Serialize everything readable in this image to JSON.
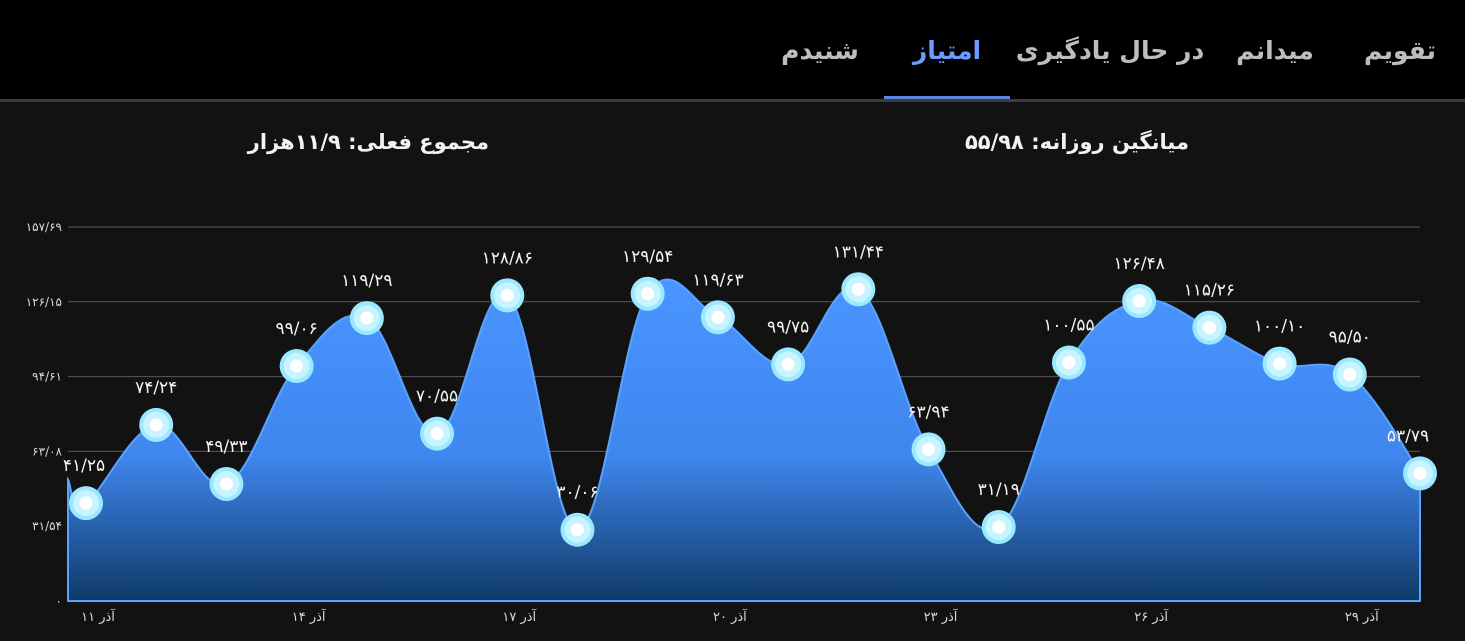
{
  "tabs": [
    {
      "label": "تقویم",
      "active": false
    },
    {
      "label": "میدانم",
      "active": false
    },
    {
      "label": "در حال یادگیری",
      "active": false
    },
    {
      "label": "امتیاز",
      "active": true
    },
    {
      "label": "شنیدم",
      "active": false
    }
  ],
  "stats": {
    "daily_average": "میانگین روزانه: ۵۵/۹۸",
    "current_total": "مجموع فعلی: ۱۱/۹هزار"
  },
  "colors": {
    "accent": "#6b9cff",
    "area_top": "#4a95ff",
    "area_bottom": "#0f3a66",
    "marker_ring": "#9be9ff"
  },
  "chart_data": {
    "type": "area",
    "x": [
      11,
      12,
      13,
      14,
      15,
      16,
      17,
      18,
      19,
      20,
      21,
      22,
      23,
      24,
      25,
      26,
      27,
      28,
      29,
      30
    ],
    "values": [
      41.25,
      74.24,
      49.33,
      99.06,
      119.29,
      70.55,
      128.86,
      30.06,
      129.54,
      119.63,
      99.75,
      131.44,
      63.94,
      31.19,
      100.55,
      126.48,
      115.26,
      100.1,
      95.5,
      53.79
    ],
    "data_labels": [
      "۴۱/۲۵",
      "۷۴/۲۴",
      "۴۹/۳۳",
      "۹۹/۰۶",
      "۱۱۹/۲۹",
      "۷۰/۵۵",
      "۱۲۸/۸۶",
      "۳۰/۰۶",
      "۱۲۹/۵۴",
      "۱۱۹/۶۳",
      "۹۹/۷۵",
      "۱۳۱/۴۴",
      "۶۳/۹۴",
      "۳۱/۱۹",
      "۱۰۰/۵۵",
      "۱۲۶/۴۸",
      "۱۱۵/۲۶",
      "۱۰۰/۱۰",
      "۹۵/۵۰",
      "۵۳/۷۹"
    ],
    "ylim": [
      0,
      157.69
    ],
    "yticks": [
      {
        "value": 0,
        "label": "۰"
      },
      {
        "value": 31.54,
        "label": "۳۱/۵۴"
      },
      {
        "value": 63.08,
        "label": "۶۳/۰۸"
      },
      {
        "value": 94.61,
        "label": "۹۴/۶۱"
      },
      {
        "value": 126.15,
        "label": "۱۲۶/۱۵"
      },
      {
        "value": 157.69,
        "label": "۱۵۷/۶۹"
      }
    ],
    "xticks": [
      {
        "x": 11,
        "label": "۱۱ آذر"
      },
      {
        "x": 14,
        "label": "۱۴ آذر"
      },
      {
        "x": 17,
        "label": "۱۷ آذر"
      },
      {
        "x": 20,
        "label": "۲۰ آذر"
      },
      {
        "x": 23,
        "label": "۲۳ آذر"
      },
      {
        "x": 26,
        "label": "۲۶ آذر"
      },
      {
        "x": 29,
        "label": "۲۹ آذر"
      }
    ],
    "grid": true
  }
}
